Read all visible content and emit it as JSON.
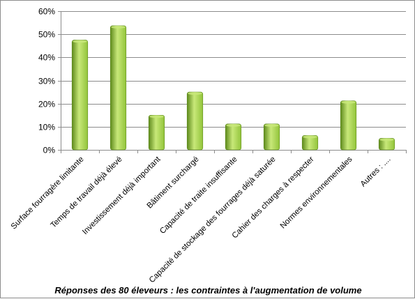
{
  "chart_data": {
    "type": "bar",
    "title": "",
    "xlabel": "",
    "ylabel": "",
    "ylim": [
      0,
      0.6
    ],
    "yticks": [
      0,
      0.1,
      0.2,
      0.3,
      0.4,
      0.5,
      0.6
    ],
    "ytick_labels": [
      "0%",
      "10%",
      "20%",
      "30%",
      "40%",
      "50%",
      "60%"
    ],
    "grid": true,
    "legend": "none",
    "categories": [
      "Surface fourragère limitante",
      "Temps de travail déjà élevé",
      "Investissement déjà important",
      "Bâtiment surchargé",
      "Capacité de traite insuffisante",
      "Capacité de stockage des fourrages déjà saturée",
      "Cahier des charges à respecter",
      "Normes environnementales",
      "Autres : ...."
    ],
    "values": [
      0.475,
      0.537,
      0.15,
      0.25,
      0.112,
      0.112,
      0.062,
      0.212,
      0.05
    ],
    "colors": {
      "bar": "#92c43a",
      "bar_light": "#c8e879",
      "bar_dark": "#5e8a1c",
      "grid": "#8c8c8c",
      "axis": "#8c8c8c"
    }
  },
  "caption": "Réponses des 80 éleveurs : les contraintes à l'augmentation de volume"
}
